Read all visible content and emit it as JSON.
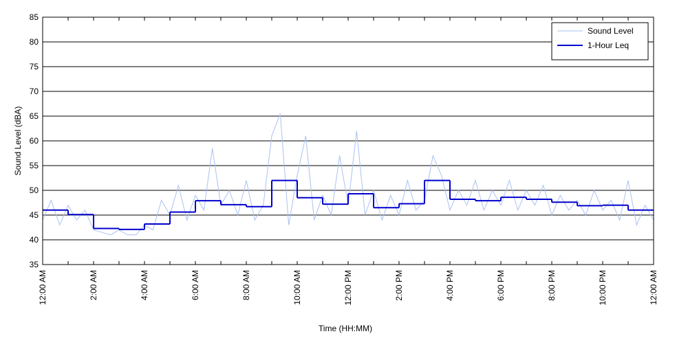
{
  "chart_data": {
    "type": "line",
    "xlabel": "Time (HH:MM)",
    "ylabel": "Sound Level (dBA)",
    "xlim": [
      0,
      1440
    ],
    "xticks": [
      {
        "value": 0,
        "label": "12:00 AM"
      },
      {
        "value": 120,
        "label": "2:00 AM"
      },
      {
        "value": 240,
        "label": "4:00 AM"
      },
      {
        "value": 360,
        "label": "6:00 AM"
      },
      {
        "value": 480,
        "label": "8:00 AM"
      },
      {
        "value": 600,
        "label": "10:00 AM"
      },
      {
        "value": 720,
        "label": "12:00 PM"
      },
      {
        "value": 840,
        "label": "2:00 PM"
      },
      {
        "value": 960,
        "label": "4:00 PM"
      },
      {
        "value": 1080,
        "label": "6:00 PM"
      },
      {
        "value": 1200,
        "label": "8:00 PM"
      },
      {
        "value": 1320,
        "label": "10:00 PM"
      },
      {
        "value": 1440,
        "label": "12:00 AM"
      }
    ],
    "xminorticks": [
      60,
      180,
      300,
      420,
      540,
      660,
      780,
      900,
      1020,
      1140,
      1260,
      1380
    ],
    "ylim": [
      35,
      85
    ],
    "yticks": [
      35,
      40,
      45,
      50,
      55,
      60,
      65,
      70,
      75,
      80,
      85
    ],
    "grid": true,
    "legend": "top-right",
    "series": [
      {
        "name": "Sound Level",
        "color": "#a9c1f2",
        "step": false,
        "x": [
          0,
          20,
          40,
          60,
          80,
          100,
          120,
          140,
          160,
          180,
          200,
          220,
          240,
          260,
          280,
          300,
          320,
          340,
          360,
          380,
          400,
          420,
          440,
          460,
          480,
          500,
          520,
          540,
          560,
          580,
          600,
          620,
          640,
          660,
          680,
          700,
          720,
          740,
          760,
          780,
          800,
          820,
          840,
          860,
          880,
          900,
          920,
          940,
          960,
          980,
          1000,
          1020,
          1040,
          1060,
          1080,
          1100,
          1120,
          1140,
          1160,
          1180,
          1200,
          1220,
          1240,
          1260,
          1280,
          1300,
          1320,
          1340,
          1360,
          1380,
          1400,
          1420,
          1440
        ],
        "values": [
          44,
          48,
          43,
          47,
          44,
          46,
          42,
          41.5,
          41,
          42,
          41,
          41,
          43,
          42,
          48,
          45,
          51,
          44,
          49,
          46,
          58.5,
          47,
          50,
          45,
          52,
          44,
          47,
          61,
          65.5,
          43,
          53,
          61,
          44,
          49,
          45,
          57,
          47,
          62,
          45,
          50,
          44,
          49,
          45,
          52,
          46,
          48,
          57,
          53,
          46,
          50,
          47,
          52,
          46,
          50,
          47,
          52,
          46,
          50,
          47,
          51,
          45,
          49,
          46,
          48,
          45,
          50,
          46,
          48,
          44,
          52,
          43,
          47,
          44
        ]
      },
      {
        "name": "1-Hour Leq",
        "color": "#0000cc",
        "step": true,
        "x": [
          0,
          60,
          120,
          180,
          240,
          300,
          360,
          420,
          480,
          540,
          600,
          660,
          720,
          780,
          840,
          900,
          960,
          1020,
          1080,
          1140,
          1200,
          1260,
          1320,
          1380
        ],
        "values": [
          46.0,
          45.1,
          42.3,
          42.1,
          43.2,
          45.6,
          47.9,
          47.1,
          46.7,
          52.0,
          48.5,
          47.2,
          49.3,
          46.5,
          47.3,
          52.0,
          48.2,
          47.9,
          48.6,
          48.2,
          47.6,
          46.9,
          47.0,
          46.0
        ]
      }
    ]
  }
}
